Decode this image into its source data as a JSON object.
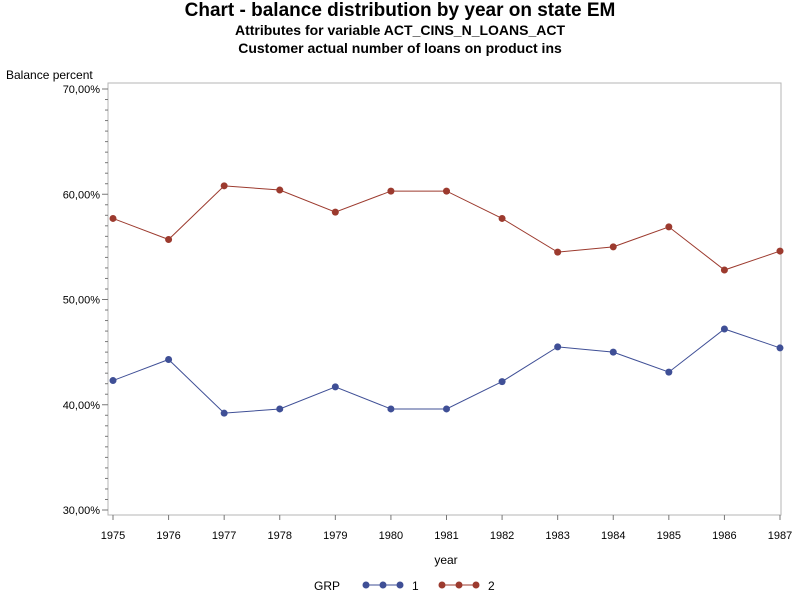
{
  "chart_data": {
    "type": "line",
    "title": "Chart - balance distribution by year on state EM",
    "subtitle1": "Attributes for variable ACT_CINS_N_LOANS_ACT",
    "subtitle2": "Customer actual number of loans on product ins",
    "ylabel": "Balance percent",
    "xlabel": "year",
    "x": [
      1975,
      1976,
      1977,
      1978,
      1979,
      1980,
      1981,
      1982,
      1983,
      1984,
      1985,
      1986,
      1987
    ],
    "ylim": [
      30,
      70
    ],
    "yticks": [
      "30,00%",
      "40,00%",
      "50,00%",
      "60,00%",
      "70,00%"
    ],
    "grid": false,
    "legend_title": "GRP",
    "legend_position": "bottom",
    "series": [
      {
        "name": "1",
        "color": "#3f4f96",
        "values": [
          42.3,
          44.3,
          39.2,
          39.6,
          41.7,
          39.6,
          39.6,
          42.2,
          45.5,
          45.0,
          43.1,
          47.2,
          45.4
        ]
      },
      {
        "name": "2",
        "color": "#9c3a2e",
        "values": [
          57.7,
          55.7,
          60.8,
          60.4,
          58.3,
          60.3,
          60.3,
          57.7,
          54.5,
          55.0,
          56.9,
          52.8,
          54.6
        ]
      }
    ]
  }
}
